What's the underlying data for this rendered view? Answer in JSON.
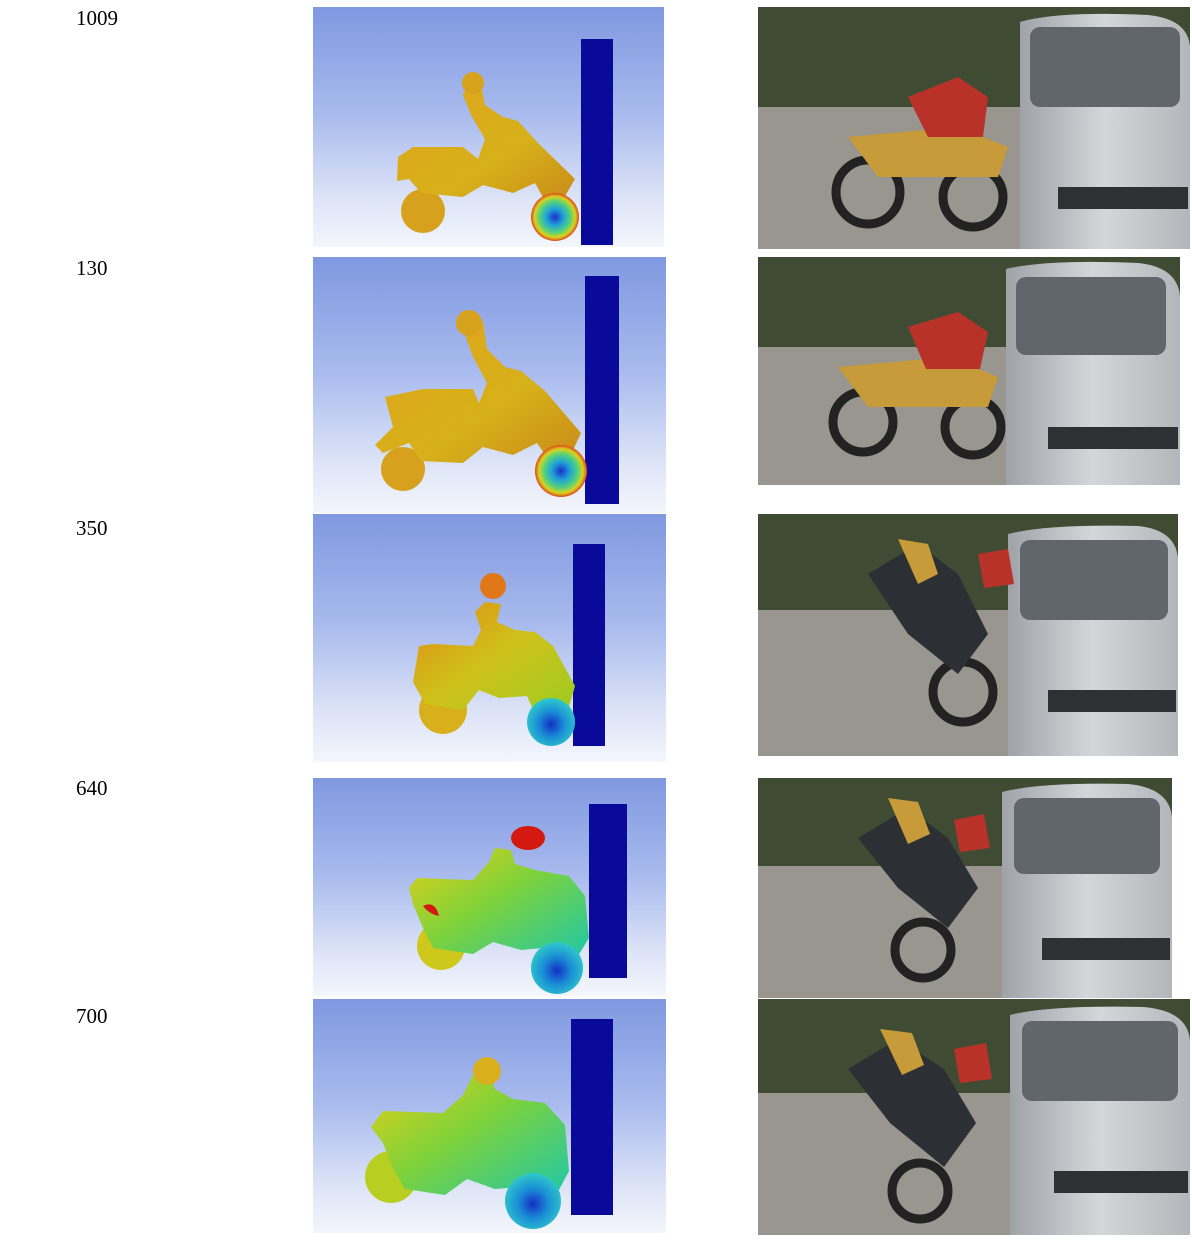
{
  "rows": [
    {
      "time": "1009"
    },
    {
      "time": "130"
    },
    {
      "time": "350"
    },
    {
      "time": "640"
    },
    {
      "time": "700"
    }
  ],
  "colors": {
    "barrier": "#0a0a9a",
    "body_warm": "#d7a11e",
    "body_green": "#3fbf5a",
    "head_red": "#d41a10",
    "wheel_blue": "#1b3fc8"
  }
}
